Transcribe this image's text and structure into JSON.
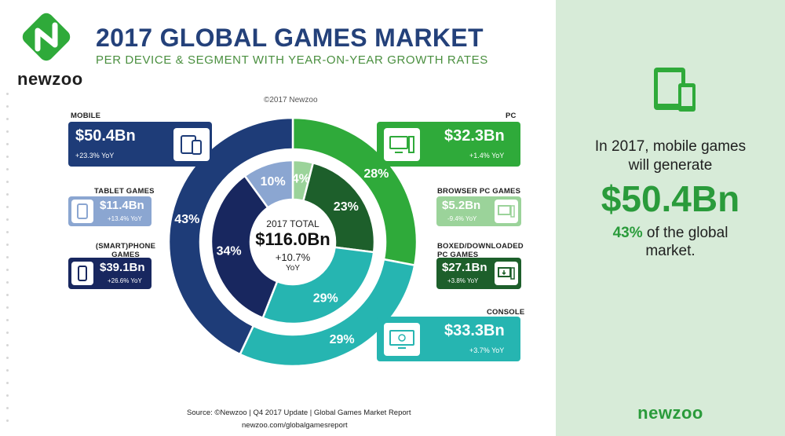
{
  "brand": {
    "logo_text": "newzoo",
    "logo_icon": "newzoo-logo-icon"
  },
  "header": {
    "title": "2017 GLOBAL GAMES MARKET",
    "subtitle": "PER DEVICE & SEGMENT WITH YEAR-ON-YEAR GROWTH RATES",
    "copyright": "©2017 Newzoo"
  },
  "colors": {
    "mobile": "#1e3c78",
    "tablet": "#8ba6d1",
    "phone": "#18275f",
    "pc": "#2faa3a",
    "browser": "#9bd39a",
    "boxed": "#1d5f2b",
    "console": "#26b5b1",
    "panel_bg": "#d7ebd8",
    "accent_green": "#2a9b3b"
  },
  "cards": {
    "mobile": {
      "title": "MOBILE",
      "value": "$50.4Bn",
      "growth": "+23.3% YoY",
      "icon": "tablet-phone-icon"
    },
    "tablet": {
      "title": "TABLET GAMES",
      "value": "$11.4Bn",
      "growth": "+13.4% YoY",
      "icon": "tablet-icon"
    },
    "phone": {
      "title": "(SMART)PHONE GAMES",
      "value": "$39.1Bn",
      "growth": "+26.6% YoY",
      "icon": "phone-icon"
    },
    "pc": {
      "title": "PC",
      "value": "$32.3Bn",
      "growth": "+1.4% YoY",
      "icon": "desktop-pc-icon"
    },
    "browser": {
      "title": "BROWSER PC GAMES",
      "value": "$5.2Bn",
      "growth": "-9.4% YoY",
      "icon": "browser-window-icon"
    },
    "boxed": {
      "title": "BOXED/DOWNLOADED PC GAMES",
      "value": "$27.1Bn",
      "growth": "+3.8% YoY",
      "icon": "download-pc-icon"
    },
    "console": {
      "title": "CONSOLE",
      "value": "$33.3Bn",
      "growth": "+3.7% YoY",
      "icon": "console-tv-icon"
    }
  },
  "center": {
    "label": "2017 TOTAL",
    "value": "$116.0Bn",
    "growth": "+10.7%",
    "yoy": "YoY"
  },
  "chart_data": {
    "type": "pie",
    "subtype": "nested-donut",
    "unit": "percent of total",
    "outer_ring": [
      {
        "name": "PC",
        "value": 28,
        "label": "28%",
        "color": "#2faa3a"
      },
      {
        "name": "CONSOLE",
        "value": 29,
        "label": "29%",
        "color": "#26b5b1"
      },
      {
        "name": "MOBILE",
        "value": 43,
        "label": "43%",
        "color": "#1e3c78"
      }
    ],
    "inner_ring": [
      {
        "name": "BROWSER PC GAMES",
        "value": 4,
        "label": "4%",
        "color": "#9bd39a"
      },
      {
        "name": "BOXED/DOWNLOADED PC GAMES",
        "value": 23,
        "label": "23%",
        "color": "#1d5f2b"
      },
      {
        "name": "CONSOLE",
        "value": 29,
        "label": "29%",
        "color": "#26b5b1"
      },
      {
        "name": "(SMART)PHONE GAMES",
        "value": 34,
        "label": "34%",
        "color": "#18275f"
      },
      {
        "name": "TABLET GAMES",
        "value": 10,
        "label": "10%",
        "color": "#8ba6d1"
      }
    ]
  },
  "footer": {
    "source": "Source: ©Newzoo | Q4 2017 Update | Global Games Market Report",
    "site": "newzoo.com/globalgamesreport"
  },
  "panel": {
    "icon": "tablet-phone-icon",
    "line1": "In 2017, mobile games",
    "line2": "will generate",
    "value": "$50.4Bn",
    "line3_pct": "43%",
    "line3_rest": " of the global",
    "line4": "market.",
    "logo_text": "newzoo"
  }
}
